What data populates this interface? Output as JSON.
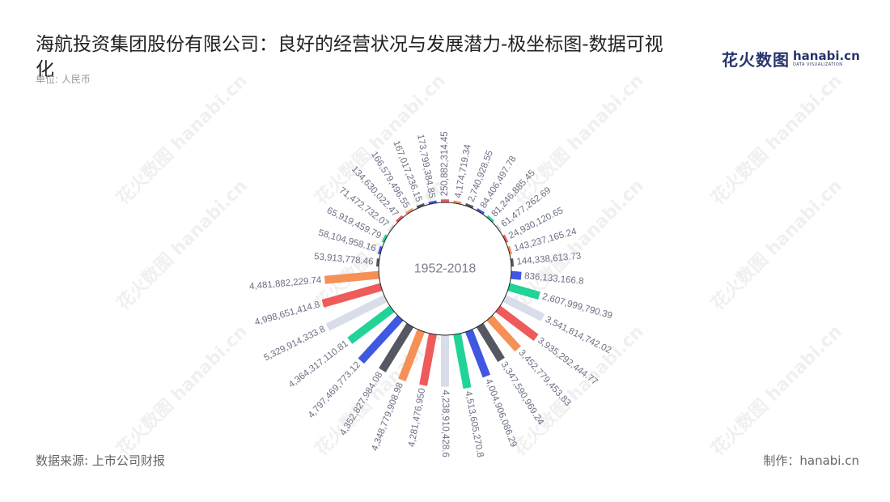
{
  "title": "海航投资集团股份有限公司：良好的经营状况与发展潜力-极坐标图-数据可视化",
  "unit_label": "单位: 人民币",
  "logo": {
    "cn": "花火数图",
    "en": "hanabi.cn",
    "sub": "DATA VISUALIZATION"
  },
  "watermark": "花火数图 hanabi.cn",
  "footer": {
    "source": "数据来源: 上市公司财报",
    "maker": "制作：hanabi.cn"
  },
  "chart_data": {
    "type": "bar",
    "polar": true,
    "center_label": "1952-2018",
    "palette": [
      "#ef5a5a",
      "#f59157",
      "#555860",
      "#3f57e1",
      "#20d396",
      "#d8dde9"
    ],
    "labels": [
      "250,882,314.45",
      "4,174,719.34",
      "2,740,928.55",
      "84,406,497.78",
      "81,246,885.45",
      "61,477,262.69",
      "24,930,120.65",
      "143,237,165.24",
      "144,338,613.73",
      "836,133,166.8",
      "2,607,999,790.39",
      "3,541,814,742.02",
      "3,935,292,444.77",
      "3,452,779,453.83",
      "3,347,590,969.24",
      "4,004,906,086.29",
      "4,513,605,270.8",
      "4,238,910,428.6",
      "4,281,476,950",
      "4,348,779,908.98",
      "4,352,827,984.08",
      "4,797,469,773.12",
      "4,364,317,110.81",
      "5,329,914,333.8",
      "4,998,651,414.8",
      "4,481,882,229.74",
      "53,913,778.46",
      "58,104,958.16",
      "65,919,459.79",
      "71,472,732.07",
      "134,630,022.47",
      "166,579,496.55",
      "167,017,236.15",
      "173,799,384.85"
    ],
    "values": [
      250882314.45,
      4174719.34,
      2740928.55,
      84406497.78,
      81246885.45,
      61477262.69,
      24930120.65,
      143237165.24,
      144338613.73,
      836133166.8,
      2607999790.39,
      3541814742.02,
      3935292444.77,
      3452779453.83,
      3347590969.24,
      4004906086.29,
      4513605270.8,
      4238910428.6,
      4281476950,
      4348779908.98,
      4352827984.08,
      4797469773.12,
      4364317110.81,
      5329914333.8,
      4998651414.8,
      4481882229.74,
      53913778.46,
      58104958.16,
      65919459.79,
      71472732.07,
      134630022.47,
      166579496.55,
      167017236.15,
      173799384.85
    ],
    "value_max": 5329914333.8,
    "grid": false,
    "legend": "none"
  }
}
